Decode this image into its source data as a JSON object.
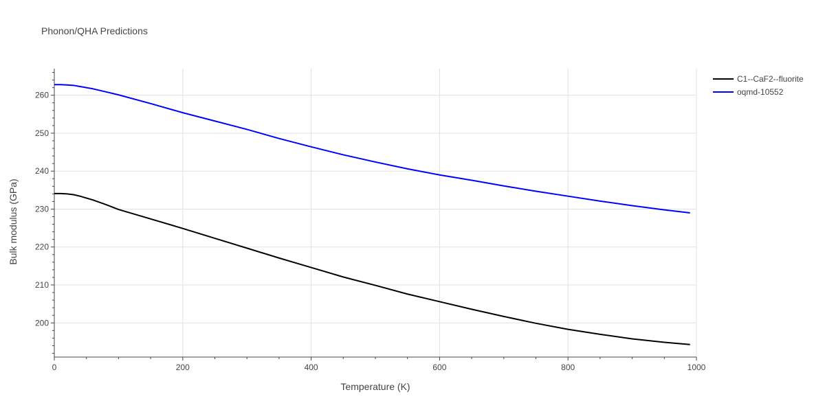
{
  "chart_data": {
    "type": "line",
    "title": "Phonon/QHA Predictions",
    "xlabel": "Temperature (K)",
    "ylabel": "Bulk modulus (GPa)",
    "xlim": [
      0,
      1000
    ],
    "ylim": [
      191,
      267
    ],
    "xticks": [
      0,
      200,
      400,
      600,
      800,
      1000
    ],
    "yticks": [
      200,
      210,
      220,
      230,
      240,
      250,
      260
    ],
    "grid": true,
    "legend_position": "top-right",
    "series": [
      {
        "name": "C1--CaF2--fluorite",
        "color": "#000000",
        "x": [
          0,
          10,
          20,
          30,
          40,
          50,
          60,
          80,
          100,
          150,
          200,
          250,
          300,
          350,
          400,
          450,
          500,
          550,
          600,
          650,
          700,
          750,
          800,
          850,
          900,
          950,
          990
        ],
        "y": [
          234.1,
          234.1,
          234.0,
          233.8,
          233.4,
          232.9,
          232.4,
          231.2,
          229.9,
          227.4,
          224.9,
          222.3,
          219.7,
          217.1,
          214.6,
          212.1,
          209.9,
          207.6,
          205.6,
          203.6,
          201.7,
          199.9,
          198.3,
          197.0,
          195.8,
          194.9,
          194.3
        ]
      },
      {
        "name": "oqmd-10552",
        "color": "#0000ff",
        "x": [
          0,
          10,
          20,
          30,
          40,
          50,
          60,
          80,
          100,
          150,
          200,
          250,
          300,
          350,
          400,
          450,
          500,
          550,
          600,
          650,
          700,
          750,
          800,
          850,
          900,
          950,
          990
        ],
        "y": [
          262.8,
          262.8,
          262.7,
          262.6,
          262.3,
          262.0,
          261.7,
          260.9,
          260.1,
          257.8,
          255.4,
          253.2,
          251.0,
          248.6,
          246.4,
          244.3,
          242.4,
          240.6,
          239.0,
          237.6,
          236.1,
          234.7,
          233.4,
          232.1,
          230.9,
          229.8,
          229.0
        ]
      }
    ]
  }
}
